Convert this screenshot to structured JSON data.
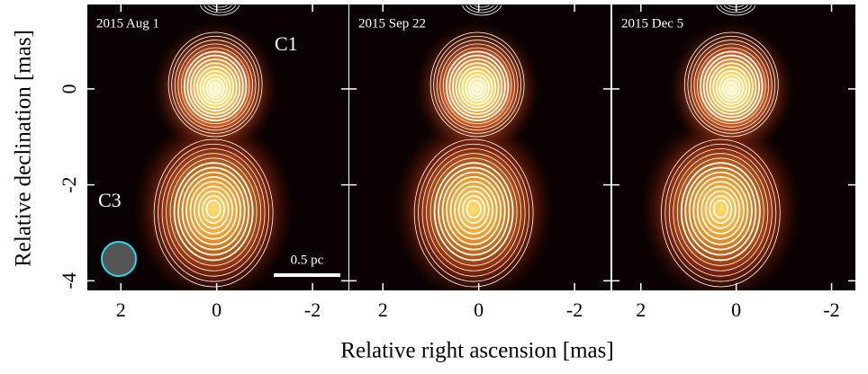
{
  "chart_data": [
    {
      "type": "contour",
      "title": "2015 Aug 1",
      "xlim": [
        2.7,
        -2.75
      ],
      "ylim": [
        -4.2,
        1.76
      ],
      "xticks": [
        2,
        0,
        -2
      ],
      "yticks": [
        0,
        -2,
        -4
      ],
      "annotations": [
        "C1",
        "C3"
      ],
      "scale_bar": "0.5 pc"
    },
    {
      "type": "contour",
      "title": "2015 Sep 22",
      "xlim": [
        2.7,
        -2.75
      ],
      "ylim": [
        -4.2,
        1.76
      ],
      "xticks": [
        2,
        0,
        -2
      ],
      "yticks": [
        0,
        -2,
        -4
      ]
    },
    {
      "type": "contour",
      "title": "2015 Dec 5",
      "xlim": [
        2.6,
        -2.5
      ],
      "ylim": [
        -4.2,
        1.76
      ],
      "xticks": [
        2,
        0,
        -2
      ],
      "yticks": [
        0,
        -2,
        -4
      ]
    }
  ],
  "x_label": "Relative right ascension [mas]",
  "y_label": "Relative declination [mas]"
}
